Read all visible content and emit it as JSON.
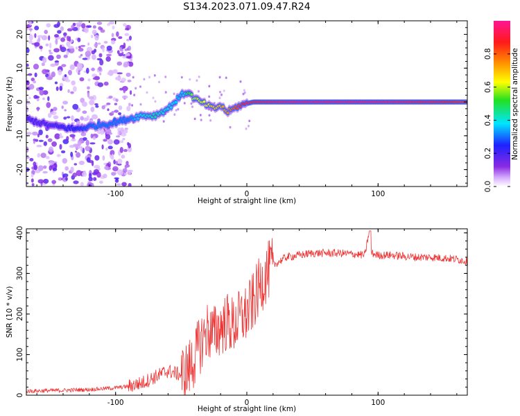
{
  "figure_title": "S134.2023.071.09.47.R24",
  "chart_data": [
    {
      "type": "heatmap",
      "title": "",
      "xlabel": "Height of straight line (km)",
      "ylabel": "Frequency (Hz)",
      "xlim": [
        -168,
        168
      ],
      "ylim": [
        -25,
        24
      ],
      "x_ticks": [
        -100,
        0,
        100
      ],
      "y_ticks": [
        -20,
        -10,
        0,
        10,
        20
      ],
      "grid": false,
      "colorbar": {
        "label": "Normalized spectral amplitude",
        "range": [
          0,
          1
        ],
        "ticks": [
          0.0,
          0.2,
          0.4,
          0.6,
          0.8
        ],
        "colormap": "rainbow (white-purple-blue-cyan-green-yellow-orange-red-pink)"
      },
      "ridge": {
        "description": "Frequency of peak spectral amplitude vs height",
        "x": [
          -168,
          -150,
          -130,
          -115,
          -100,
          -90,
          -80,
          -70,
          -60,
          -50,
          -45,
          -40,
          -35,
          -30,
          -25,
          -20,
          -15,
          -10,
          -5,
          0,
          5,
          10,
          20,
          40,
          60,
          80,
          100,
          120,
          140,
          168
        ],
        "freq": [
          -5,
          -7,
          -8,
          -7,
          -6,
          -5,
          -4,
          -4,
          -2,
          2,
          3,
          1,
          0,
          -1,
          -2,
          -1,
          -3,
          -2,
          -1,
          -0.5,
          0,
          0,
          0,
          0,
          0,
          0,
          0,
          0,
          0,
          0
        ],
        "amplitude": [
          0.2,
          0.2,
          0.25,
          0.3,
          0.3,
          0.3,
          0.4,
          0.45,
          0.4,
          0.35,
          0.5,
          0.6,
          0.6,
          0.65,
          0.7,
          0.7,
          0.75,
          0.8,
          0.85,
          0.9,
          0.9,
          0.9,
          0.92,
          0.95,
          0.95,
          0.95,
          0.95,
          0.92,
          0.9,
          0.85
        ]
      },
      "noise_region": "Scattered low-amplitude purple noise across all frequencies for heights below about -90 km"
    },
    {
      "type": "line",
      "title": "",
      "xlabel": "Height of straight line (km)",
      "ylabel": "SNR (10 * v/v)",
      "xlim": [
        -168,
        168
      ],
      "ylim": [
        0,
        410
      ],
      "x_ticks": [
        -100,
        0,
        100
      ],
      "y_ticks": [
        0,
        100,
        200,
        300,
        400
      ],
      "grid": false,
      "series": [
        {
          "color": "#ee3333",
          "x": [
            -168,
            -140,
            -120,
            -100,
            -90,
            -80,
            -70,
            -60,
            -50,
            -45,
            -40,
            -35,
            -30,
            -25,
            -20,
            -15,
            -10,
            -5,
            0,
            5,
            10,
            15,
            20,
            30,
            40,
            50,
            60,
            70,
            80,
            90,
            93,
            95,
            100,
            110,
            120,
            130,
            140,
            150,
            160,
            168
          ],
          "values": [
            10,
            12,
            14,
            18,
            22,
            30,
            45,
            60,
            50,
            60,
            90,
            130,
            160,
            150,
            170,
            180,
            170,
            190,
            200,
            230,
            270,
            300,
            320,
            340,
            345,
            350,
            350,
            350,
            348,
            345,
            400,
            350,
            345,
            345,
            342,
            340,
            340,
            338,
            335,
            330
          ]
        }
      ]
    }
  ]
}
